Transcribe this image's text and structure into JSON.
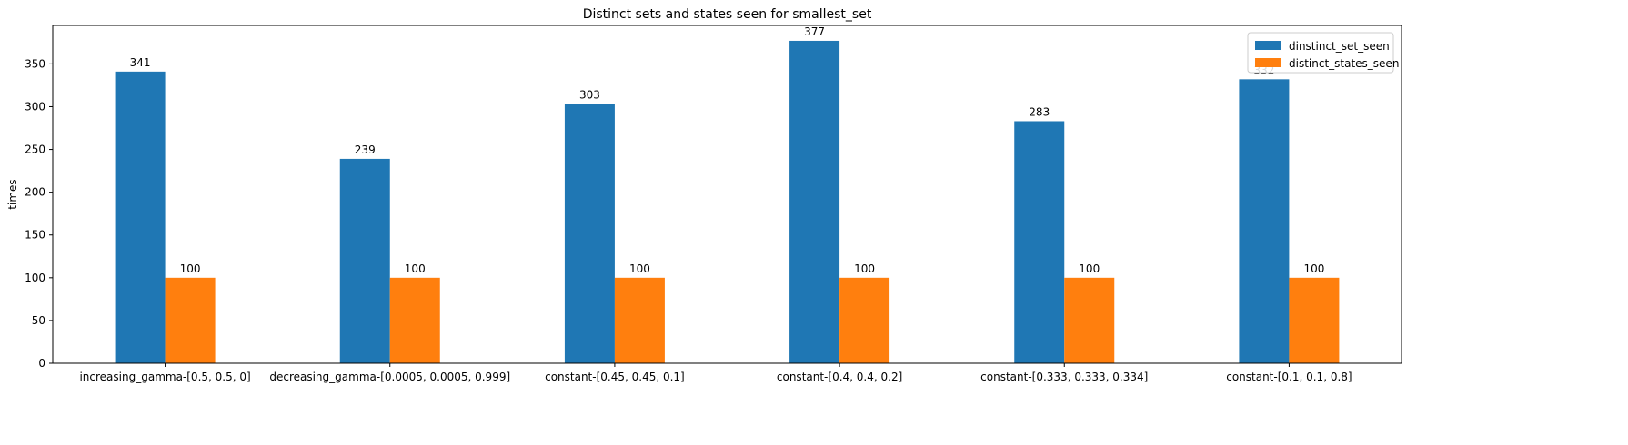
{
  "chart_data": {
    "type": "bar",
    "title": "Distinct sets and states seen for smallest_set",
    "xlabel": "",
    "ylabel": "times",
    "ylim": [
      0,
      395
    ],
    "yticks": [
      0,
      50,
      100,
      150,
      200,
      250,
      300,
      350
    ],
    "grid": false,
    "legend_position": "top-right",
    "categories": [
      "increasing_gamma-[0.5, 0.5, 0]",
      "decreasing_gamma-[0.0005, 0.0005, 0.999]",
      "constant-[0.45, 0.45, 0.1]",
      "constant-[0.4, 0.4, 0.2]",
      "constant-[0.333, 0.333, 0.334]",
      "constant-[0.1, 0.1, 0.8]"
    ],
    "series": [
      {
        "name": "dinstinct_set_seen",
        "color": "#1f77b4",
        "values": [
          341,
          239,
          303,
          377,
          283,
          332
        ]
      },
      {
        "name": "distinct_states_seen",
        "color": "#ff7f0e",
        "values": [
          100,
          100,
          100,
          100,
          100,
          100
        ]
      }
    ]
  }
}
